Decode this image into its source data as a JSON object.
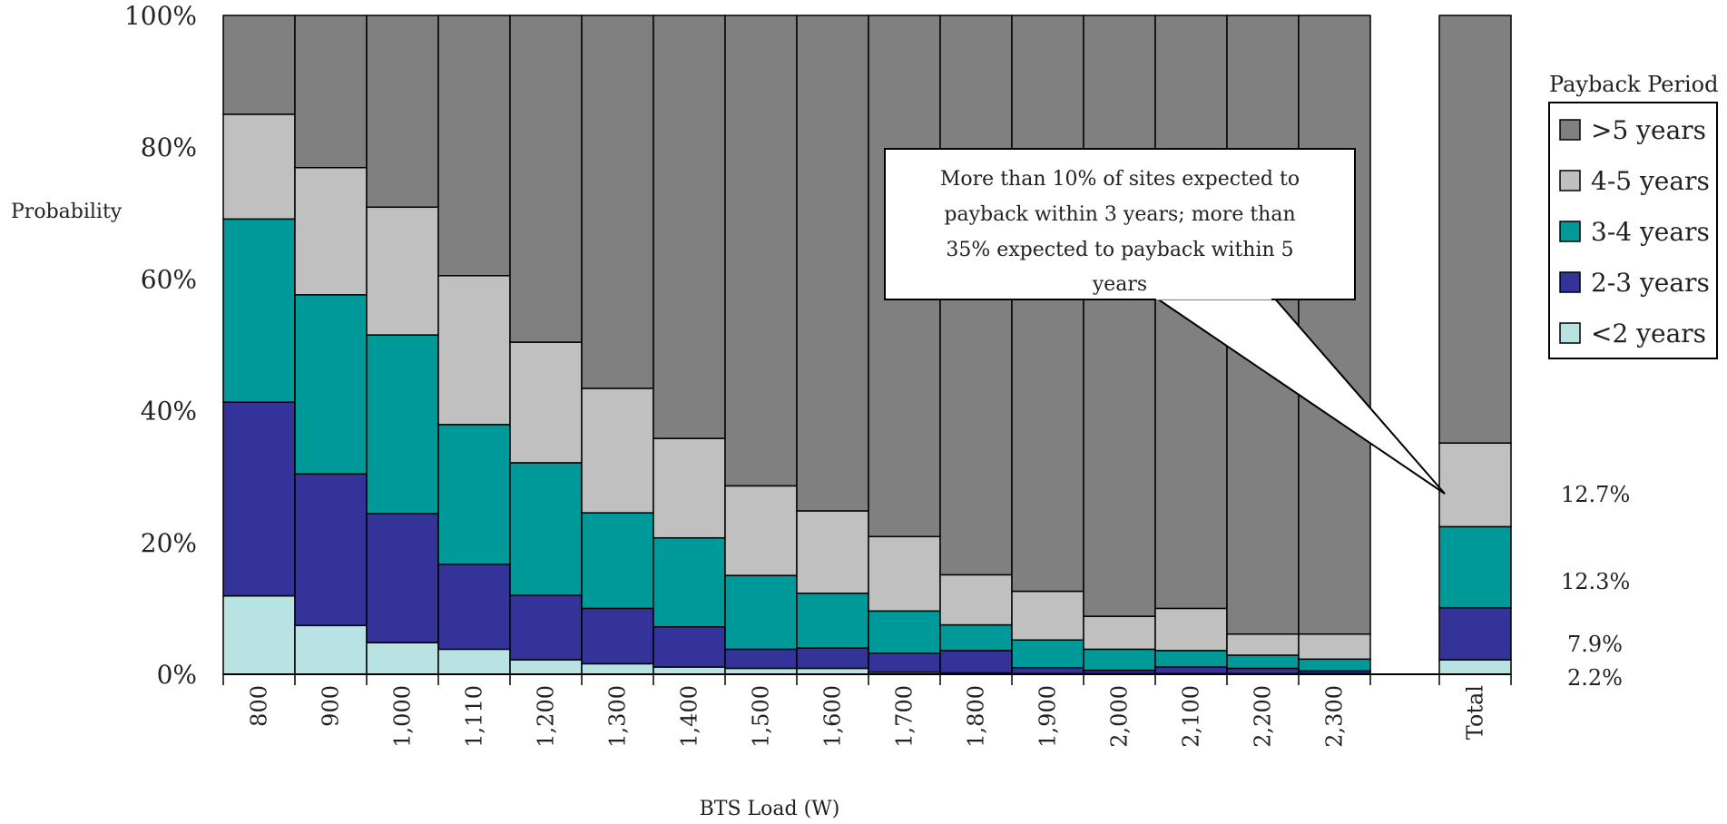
{
  "chart_data": {
    "type": "bar",
    "stacked": true,
    "xlabel": "BTS Load (W)",
    "ylabel": "Probability",
    "ylim": [
      0,
      100
    ],
    "y_ticks": [
      "0%",
      "20%",
      "40%",
      "60%",
      "80%",
      "100%"
    ],
    "categories": [
      "800",
      "900",
      "1,000",
      "1,110",
      "1,200",
      "1,300",
      "1,400",
      "1,500",
      "1,600",
      "1,700",
      "1,800",
      "1,900",
      "2,000",
      "2,100",
      "2,200",
      "2,300",
      "Total"
    ],
    "legend": {
      "title": "Payback Period",
      "position": "right"
    },
    "series": [
      {
        "name": "<2 years",
        "color": "#B9E2E3",
        "values": [
          11.9,
          7.4,
          4.8,
          3.8,
          2.2,
          1.6,
          1.1,
          0.9,
          0.9,
          0.3,
          0.2,
          0.1,
          0.1,
          0.1,
          0.1,
          0.1,
          2.2
        ]
      },
      {
        "name": "2-3 years",
        "color": "#343399",
        "values": [
          29.4,
          23.0,
          19.6,
          12.9,
          9.8,
          8.4,
          6.1,
          2.9,
          3.1,
          2.9,
          3.4,
          0.9,
          0.5,
          1.0,
          0.8,
          0.4,
          7.9
        ]
      },
      {
        "name": "3-4 years",
        "color": "#009999",
        "values": [
          27.8,
          27.2,
          27.1,
          21.2,
          20.1,
          14.5,
          13.5,
          11.2,
          8.3,
          6.4,
          3.9,
          4.2,
          3.2,
          2.5,
          2.0,
          1.8,
          12.3
        ]
      },
      {
        "name": "4-5 years",
        "color": "#C0C0C0",
        "values": [
          15.9,
          19.3,
          19.4,
          22.6,
          18.3,
          18.9,
          15.1,
          13.6,
          12.5,
          11.3,
          7.6,
          7.4,
          5.0,
          6.4,
          3.2,
          3.8,
          12.7
        ]
      },
      {
        "name": ">5 years",
        "color": "#808080",
        "values": [
          15.0,
          23.1,
          29.1,
          39.5,
          49.6,
          56.6,
          64.2,
          71.4,
          75.2,
          79.1,
          84.9,
          87.4,
          91.2,
          90.0,
          93.9,
          93.9,
          64.9
        ]
      }
    ],
    "side_labels": [
      "12.7%",
      "12.3%",
      "7.9%",
      "2.2%"
    ],
    "callout": {
      "lines": [
        "More than 10% of sites expected to",
        "payback within 3 years; more than",
        "35% expected to payback within 5",
        "years"
      ],
      "points_to": "Total"
    }
  }
}
